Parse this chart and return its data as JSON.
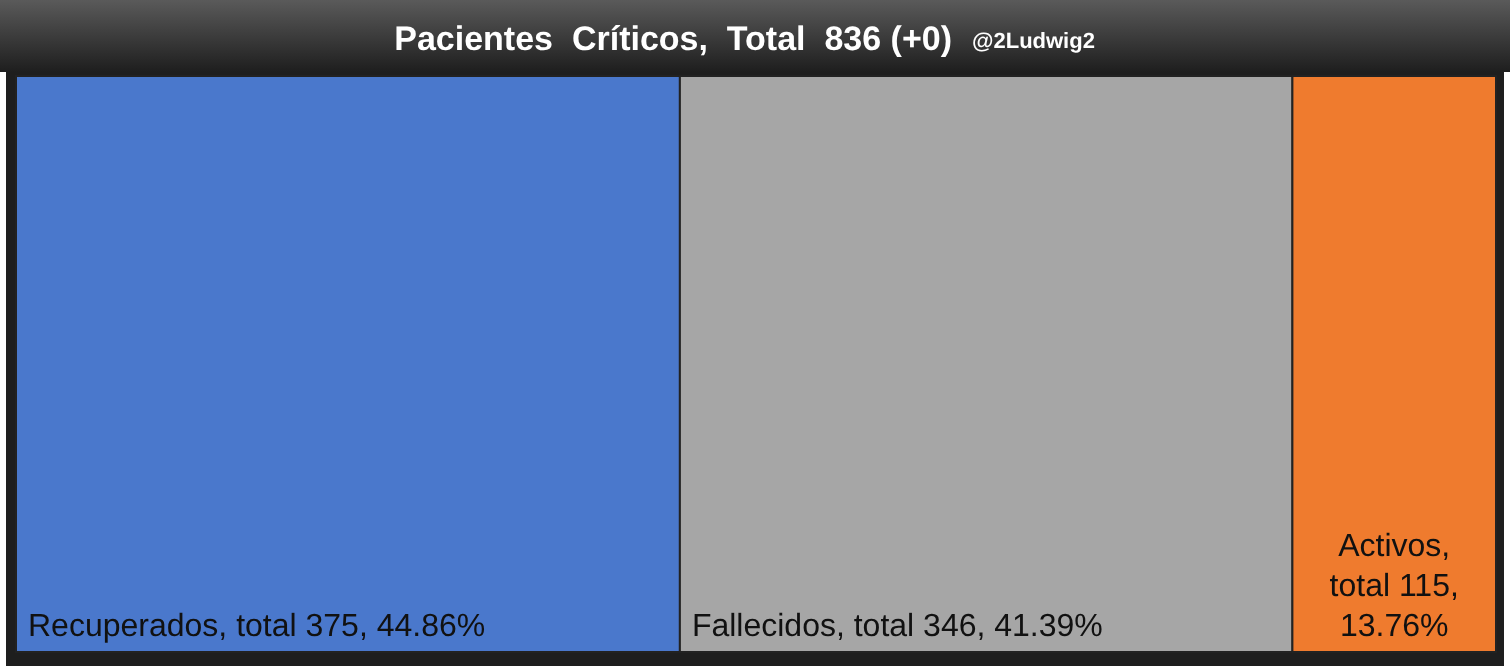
{
  "chart_data": {
    "type": "other",
    "title": "Pacientes  Críticos,  Total  836 (+0)",
    "annotations": [
      "@2Ludwig2"
    ],
    "categories": [
      "Recuperados",
      "Fallecidos",
      "Activos"
    ],
    "values": [
      375,
      346,
      115
    ],
    "colors": [
      "#4a78cc",
      "#a6a6a6",
      "#ef7b2e"
    ],
    "value_labels": [
      ", total 375, 44.86%",
      ", total 346, 41.39%",
      ", total 115, 13.76%"
    ]
  }
}
